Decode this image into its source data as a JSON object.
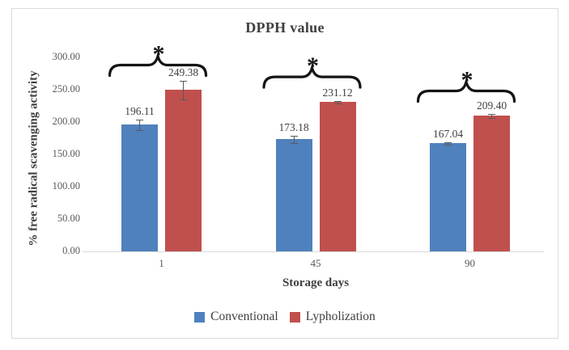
{
  "chart_data": {
    "type": "bar",
    "title": "DPPH value",
    "xlabel": "Storage days",
    "ylabel": "% free radical scavenging activity",
    "categories": [
      "1",
      "45",
      "90"
    ],
    "series": [
      {
        "name": "Conventional",
        "color": "#4F81BD",
        "values": [
          196.11,
          173.18,
          167.04
        ],
        "labels": [
          "196.11",
          "173.18",
          "167.04"
        ],
        "errors": [
          8,
          6,
          2
        ]
      },
      {
        "name": "Lypholization",
        "color": "#C0504D",
        "values": [
          249.38,
          231.12,
          209.4
        ],
        "labels": [
          "249.38",
          "231.12",
          "209.40"
        ],
        "errors": [
          14,
          2,
          3
        ]
      }
    ],
    "ylim": [
      0,
      300
    ],
    "ytick_step": 50,
    "yticks": [
      "0.00",
      "50.00",
      "100.00",
      "150.00",
      "200.00",
      "250.00",
      "300.00"
    ],
    "grid": false,
    "legend_position": "bottom",
    "significance": {
      "symbol": "*",
      "applies_to_groups": [
        "1",
        "45",
        "90"
      ]
    }
  },
  "colors": {
    "axis_line": "#d9d9d9",
    "tick_text": "#595959",
    "value_label_text": "#404040",
    "heading_text": "#3f3f3f",
    "annotation": "#141414",
    "frame_border": "#dadce1",
    "error_bar": "#595959"
  }
}
